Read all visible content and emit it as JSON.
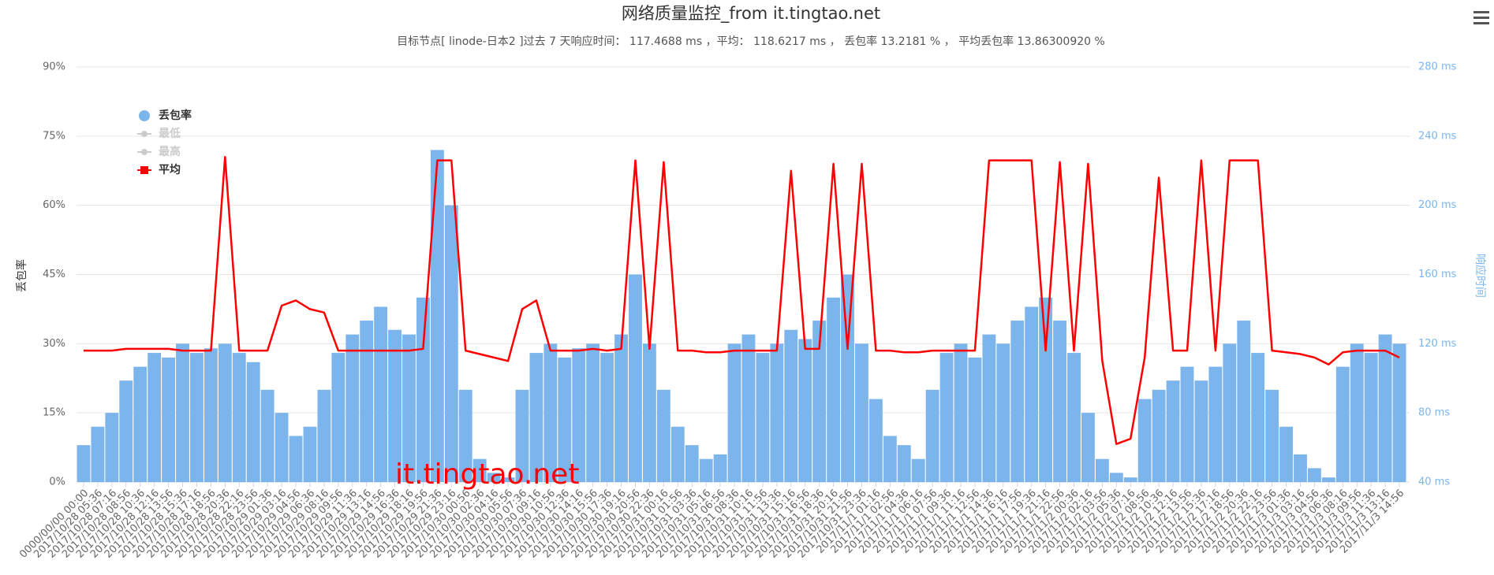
{
  "chart_data": {
    "type": "combo",
    "title": "网络质量监控_from it.tingtao.net",
    "subtitle": "目标节点[ linode-日本2 ]过去 7 天响应时间： 117.4688 ms ，平均： 118.6217 ms ， 丢包率 13.2181 % ， 平均丢包率 13.86300920 %",
    "y_label": "丢包率",
    "y2_label": "响应时间",
    "watermark": "it.tingtao.net",
    "categories": [
      "0000/00/00 00:00",
      "2017/10/28 05:36",
      "2017/10/28 07:16",
      "2017/10/28 08:56",
      "2017/10/28 10:36",
      "2017/10/28 12:16",
      "2017/10/28 13:56",
      "2017/10/28 15:36",
      "2017/10/28 17:16",
      "2017/10/28 18:56",
      "2017/10/28 20:36",
      "2017/10/28 22:16",
      "2017/10/28 23:56",
      "2017/10/29 01:36",
      "2017/10/29 03:16",
      "2017/10/29 04:56",
      "2017/10/29 06:36",
      "2017/10/29 08:16",
      "2017/10/29 09:56",
      "2017/10/29 11:36",
      "2017/10/29 13:16",
      "2017/10/29 14:56",
      "2017/10/29 16:36",
      "2017/10/29 18:16",
      "2017/10/29 19:56",
      "2017/10/29 21:36",
      "2017/10/29 23:16",
      "2017/10/30 00:56",
      "2017/10/30 02:36",
      "2017/10/30 04:16",
      "2017/10/30 05:56",
      "2017/10/30 07:36",
      "2017/10/30 09:16",
      "2017/10/30 10:56",
      "2017/10/30 12:36",
      "2017/10/30 14:16",
      "2017/10/30 15:56",
      "2017/10/30 17:36",
      "2017/10/30 19:16",
      "2017/10/30 20:56",
      "2017/10/30 22:36",
      "2017/10/31 00:16",
      "2017/10/31 01:56",
      "2017/10/31 03:36",
      "2017/10/31 05:16",
      "2017/10/31 06:56",
      "2017/10/31 08:36",
      "2017/10/31 10:16",
      "2017/10/31 11:56",
      "2017/10/31 13:36",
      "2017/10/31 15:16",
      "2017/10/31 16:56",
      "2017/10/31 18:36",
      "2017/10/31 20:16",
      "2017/10/31 21:56",
      "2017/10/31 23:36",
      "2017/11/1 01:16",
      "2017/11/1 02:56",
      "2017/11/1 04:36",
      "2017/11/1 06:16",
      "2017/11/1 07:56",
      "2017/11/1 09:36",
      "2017/11/1 11:16",
      "2017/11/1 12:56",
      "2017/11/1 14:36",
      "2017/11/1 16:16",
      "2017/11/1 17:56",
      "2017/11/1 19:36",
      "2017/11/1 21:16",
      "2017/11/1 22:56",
      "2017/11/2 00:36",
      "2017/11/2 02:16",
      "2017/11/2 03:56",
      "2017/11/2 05:36",
      "2017/11/2 07:16",
      "2017/11/2 08:56",
      "2017/11/2 10:36",
      "2017/11/2 12:16",
      "2017/11/2 13:56",
      "2017/11/2 15:36",
      "2017/11/2 17:16",
      "2017/11/2 18:56",
      "2017/11/2 20:36",
      "2017/11/2 22:16",
      "2017/11/2 23:56",
      "2017/11/3 01:36",
      "2017/11/3 03:16",
      "2017/11/3 04:56",
      "2017/11/3 06:36",
      "2017/11/3 08:16",
      "2017/11/3 09:56",
      "2017/11/3 11:36",
      "2017/11/3 13:16",
      "2017/11/3 14:56"
    ],
    "series": [
      {
        "name": "丢包率",
        "type": "bar",
        "color": "#7cb5ec",
        "values": [
          8,
          12,
          15,
          22,
          25,
          28,
          27,
          30,
          28,
          29,
          30,
          28,
          26,
          20,
          15,
          10,
          12,
          20,
          28,
          32,
          35,
          38,
          33,
          32,
          40,
          72,
          60,
          20,
          5,
          2,
          1,
          20,
          28,
          30,
          27,
          29,
          30,
          28,
          32,
          45,
          30,
          20,
          12,
          8,
          5,
          6,
          30,
          32,
          28,
          30,
          33,
          31,
          35,
          40,
          45,
          30,
          18,
          10,
          8,
          5,
          20,
          28,
          30,
          27,
          32,
          30,
          35,
          38,
          40,
          35,
          28,
          15,
          5,
          2,
          1,
          18,
          20,
          22,
          25,
          22,
          25,
          30,
          35,
          28,
          20,
          12,
          6,
          3,
          1,
          25,
          30,
          28,
          32,
          30
        ]
      },
      {
        "name": "最低",
        "type": "line",
        "color": "#cccccc",
        "visible": false
      },
      {
        "name": "最高",
        "type": "line",
        "color": "#cccccc",
        "visible": false
      },
      {
        "name": "平均",
        "type": "line",
        "axis": "y2",
        "color": "#ff0000",
        "values": [
          116,
          116,
          116,
          117,
          117,
          117,
          117,
          116,
          116,
          116,
          228,
          116,
          116,
          116,
          142,
          145,
          140,
          138,
          116,
          116,
          116,
          116,
          116,
          116,
          117,
          226,
          226,
          116,
          114,
          112,
          110,
          140,
          145,
          116,
          116,
          116,
          117,
          116,
          117,
          226,
          117,
          225,
          116,
          116,
          115,
          115,
          116,
          116,
          116,
          116,
          220,
          117,
          117,
          224,
          117,
          224,
          116,
          116,
          115,
          115,
          116,
          116,
          116,
          116,
          226,
          226,
          226,
          226,
          116,
          225,
          116,
          224,
          110,
          62,
          65,
          112,
          216,
          116,
          116,
          226,
          116,
          226,
          226,
          226,
          116,
          115,
          114,
          112,
          108,
          115,
          116,
          116,
          116,
          112
        ]
      }
    ],
    "ylim": [
      0,
      90
    ],
    "yticks": [
      {
        "value": 0,
        "label": "0%"
      },
      {
        "value": 15,
        "label": "15%"
      },
      {
        "value": 30,
        "label": "30%"
      },
      {
        "value": 45,
        "label": "45%"
      },
      {
        "value": 60,
        "label": "60%"
      },
      {
        "value": 75,
        "label": "75%"
      },
      {
        "value": 90,
        "label": "90%"
      }
    ],
    "y2lim": [
      40,
      280
    ],
    "y2ticks": [
      {
        "value": 40,
        "label": "40 ms"
      },
      {
        "value": 80,
        "label": "80 ms"
      },
      {
        "value": 120,
        "label": "120 ms"
      },
      {
        "value": 160,
        "label": "160 ms"
      },
      {
        "value": 200,
        "label": "200 ms"
      },
      {
        "value": 240,
        "label": "240 ms"
      },
      {
        "value": 280,
        "label": "280 ms"
      }
    ],
    "grid": true
  }
}
